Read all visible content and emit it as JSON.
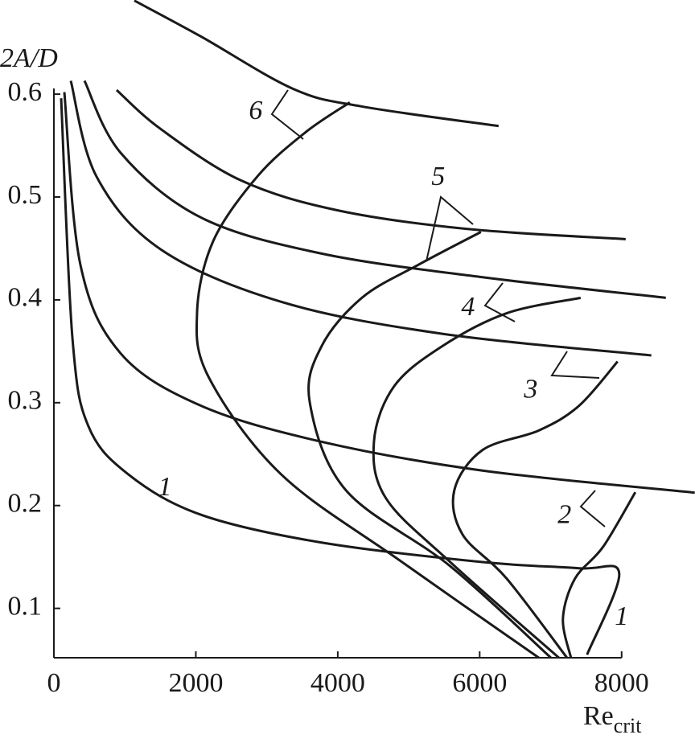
{
  "chart_data": {
    "type": "line",
    "ylabel": "2A/D",
    "xlabel": {
      "main": "Re",
      "sub": "crit"
    },
    "xlim": [
      0,
      9000
    ],
    "xticks": [
      0,
      2000,
      4000,
      6000,
      8000
    ],
    "ylim": [
      0.052,
      0.69
    ],
    "yticks": [
      0.1,
      0.2,
      0.3,
      0.4,
      0.5,
      0.6
    ],
    "color": "#1a1a1a",
    "series": [
      {
        "x": [
          1133,
          2074,
          3377,
          4340,
          6266
        ],
        "values": [
          0.691,
          0.656,
          0.605,
          0.588,
          0.569
        ]
      },
      {
        "x": [
          884,
          1507,
          2640,
          4000,
          5813,
          8057
        ],
        "values": [
          0.604,
          0.566,
          0.516,
          0.487,
          0.469,
          0.459
        ]
      },
      {
        "x": [
          431,
          940,
          2074,
          3773,
          6040,
          8623
        ],
        "values": [
          0.613,
          0.543,
          0.48,
          0.445,
          0.422,
          0.402
        ]
      },
      {
        "x": [
          238,
          600,
          1507,
          3207,
          5473,
          8419
        ],
        "values": [
          0.613,
          0.52,
          0.449,
          0.398,
          0.367,
          0.346
        ]
      },
      {
        "x": [
          147,
          374,
          940,
          2074,
          3773,
          6040,
          9031
        ],
        "values": [
          0.602,
          0.434,
          0.348,
          0.297,
          0.262,
          0.234,
          0.2125
        ]
      },
      {
        "x": [
          102,
          261,
          487,
          1054,
          2074,
          3773,
          6040,
          7400,
          7966,
          7513
        ],
        "values": [
          0.596,
          0.363,
          0.277,
          0.23,
          0.191,
          0.164,
          0.145,
          0.139,
          0.134,
          0.055
        ]
      },
      {
        "x": [
          6833,
          4907,
          3207,
          2187,
          2017,
          2244,
          2867,
          3547,
          4170
        ],
        "values": [
          0.052,
          0.145,
          0.23,
          0.324,
          0.387,
          0.457,
          0.52,
          0.563,
          0.592
        ]
      },
      {
        "x": [
          7003,
          5586,
          4113,
          3604,
          3773,
          4340,
          5133,
          6017
        ],
        "values": [
          0.052,
          0.141,
          0.215,
          0.301,
          0.355,
          0.402,
          0.434,
          0.466
        ]
      },
      {
        "x": [
          7116,
          5586,
          4680,
          4510,
          4794,
          5473,
          6380,
          7422
        ],
        "values": [
          0.052,
          0.145,
          0.207,
          0.262,
          0.316,
          0.355,
          0.387,
          0.402
        ]
      },
      {
        "x": [
          7230,
          6380,
          5757,
          5643,
          6040,
          6833,
          7400,
          7943
        ],
        "values": [
          0.052,
          0.129,
          0.172,
          0.215,
          0.254,
          0.273,
          0.297,
          0.34
        ]
      },
      {
        "x": [
          7286,
          7173,
          7343,
          7740,
          8193
        ],
        "values": [
          0.052,
          0.09,
          0.129,
          0.16,
          0.213
        ]
      }
    ],
    "annotations": [
      {
        "text": "6",
        "x": 2844,
        "y": 0.582
      },
      {
        "text": "5",
        "x": 5416,
        "y": 0.518
      },
      {
        "text": "4",
        "x": 5836,
        "y": 0.391
      },
      {
        "text": "3",
        "x": 6720,
        "y": 0.311
      },
      {
        "text": "2",
        "x": 7195,
        "y": 0.189
      },
      {
        "text": "1",
        "x": 1564,
        "y": 0.216
      },
      {
        "text": "1",
        "x": 8000,
        "y": 0.09
      }
    ]
  }
}
